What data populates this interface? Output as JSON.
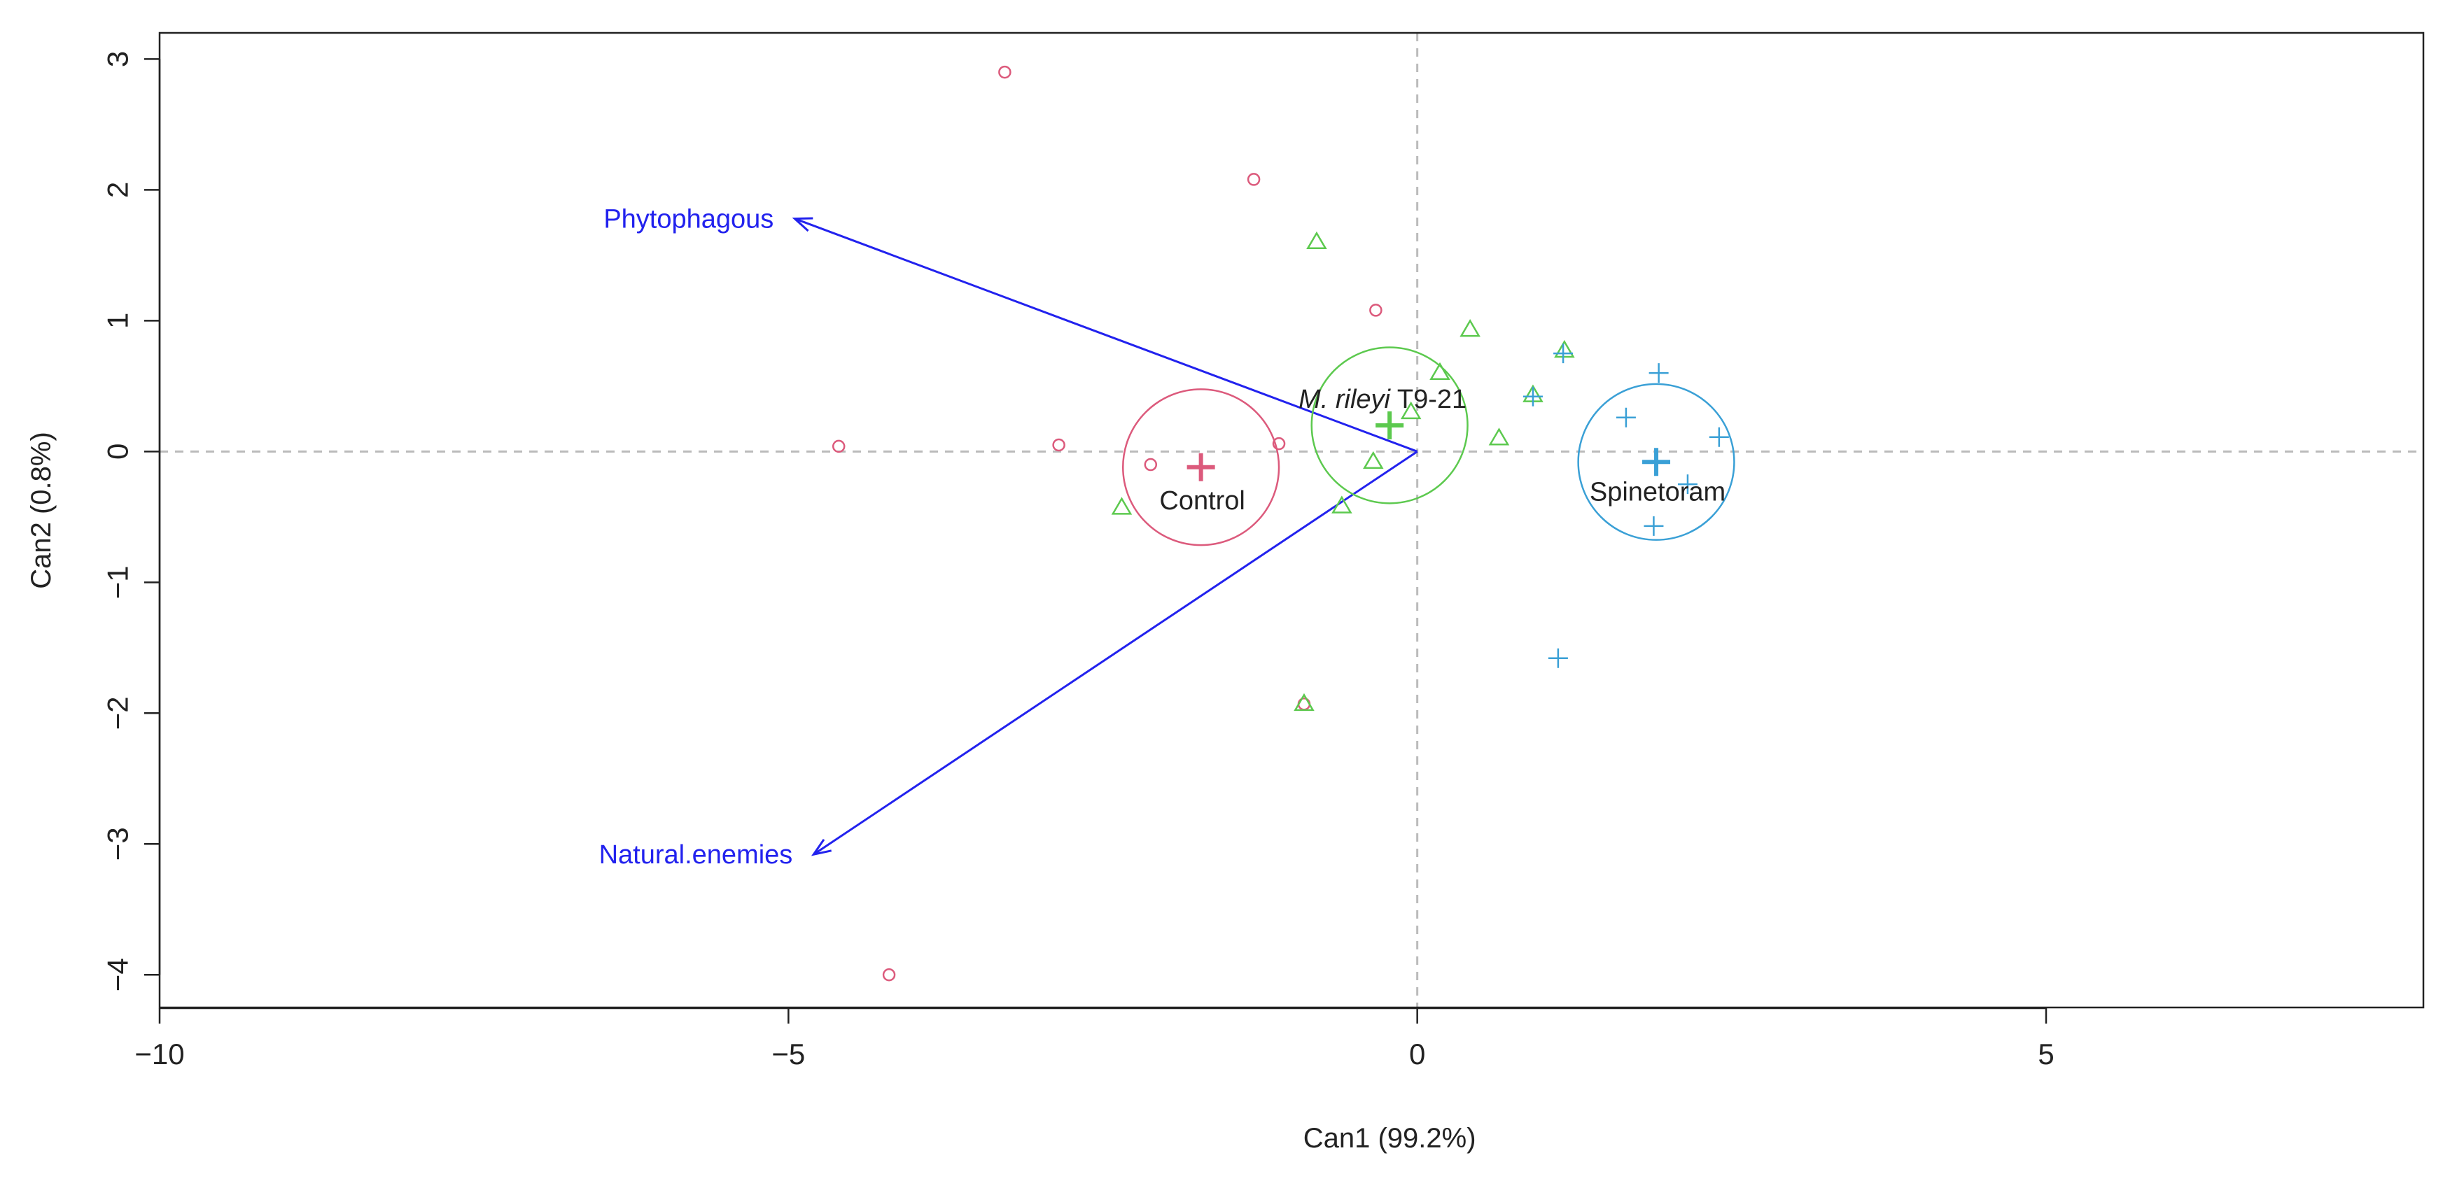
{
  "chart_data": {
    "type": "scatter",
    "subtype": "canonical discriminant biplot",
    "xlabel": "Can1 (99.2%)",
    "ylabel": "Can2 (0.8%)",
    "xlim": [
      -10,
      8
    ],
    "ylim": [
      -4.25,
      3.2
    ],
    "x_ticks": [
      -10,
      -5,
      0,
      5
    ],
    "x_tick_labels": [
      "−10",
      "−5",
      "0",
      "5"
    ],
    "y_ticks": [
      -4,
      -3,
      -2,
      -1,
      0,
      1,
      2,
      3
    ],
    "y_tick_labels": [
      "−4",
      "−3",
      "−2",
      "−1",
      "0",
      "1",
      "2",
      "3"
    ],
    "reference_lines": {
      "x": 0,
      "y": 0,
      "style": "dashed",
      "color": "#bbbbbb"
    },
    "vectors": [
      {
        "name": "Phytophagous",
        "x": -4.95,
        "y": 1.78,
        "color": "#2222ee"
      },
      {
        "name": "Natural.enemies",
        "x": -4.8,
        "y": -3.08,
        "color": "#2222ee"
      }
    ],
    "groups": [
      {
        "name": "Control",
        "color": "#dc5a7c",
        "marker": "circle",
        "centroid": [
          -1.72,
          -0.12
        ],
        "radius": 0.62,
        "points": [
          [
            -3.28,
            2.9
          ],
          [
            -1.3,
            2.08
          ],
          [
            -0.33,
            1.08
          ],
          [
            -4.6,
            0.04
          ],
          [
            -2.85,
            0.05
          ],
          [
            -2.12,
            -0.1
          ],
          [
            -1.1,
            0.06
          ],
          [
            -0.9,
            -1.93
          ],
          [
            -4.2,
            -4.0
          ]
        ]
      },
      {
        "name": "M. rileyi T9-21",
        "label_italic": "M. rileyi",
        "label_plain": " T9-21",
        "color": "#5cc94e",
        "marker": "triangle",
        "centroid": [
          -0.22,
          0.2
        ],
        "radius": 0.62,
        "points": [
          [
            -0.8,
            1.6
          ],
          [
            0.42,
            0.93
          ],
          [
            1.17,
            0.77
          ],
          [
            0.18,
            0.6
          ],
          [
            0.92,
            0.43
          ],
          [
            -0.05,
            0.3
          ],
          [
            0.65,
            0.1
          ],
          [
            -0.35,
            -0.08
          ],
          [
            -0.6,
            -0.42
          ],
          [
            -2.35,
            -0.43
          ],
          [
            -0.9,
            -1.93
          ]
        ]
      },
      {
        "name": "Spinetoram",
        "color": "#3aa0d6",
        "marker": "plus",
        "centroid": [
          1.9,
          -0.08
        ],
        "radius": 0.62,
        "points": [
          [
            1.92,
            0.6
          ],
          [
            1.66,
            0.26
          ],
          [
            2.4,
            0.11
          ],
          [
            1.16,
            0.75
          ],
          [
            0.92,
            0.42
          ],
          [
            2.15,
            -0.25
          ],
          [
            1.88,
            -0.57
          ],
          [
            1.12,
            -1.58
          ]
        ]
      }
    ]
  }
}
